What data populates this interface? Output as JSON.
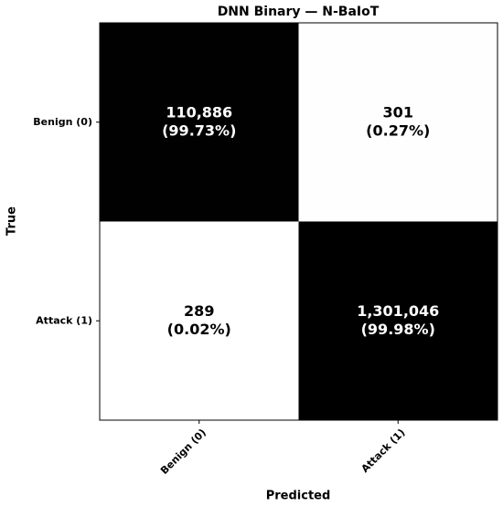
{
  "chart_data": {
    "type": "heatmap",
    "title": "DNN Binary — N-BaIoT",
    "xlabel": "Predicted",
    "ylabel": "True",
    "x_categories": [
      "Benign (0)",
      "Attack (1)"
    ],
    "y_categories": [
      "Benign (0)",
      "Attack (1)"
    ],
    "values": [
      [
        110886,
        301
      ],
      [
        289,
        1301046
      ]
    ],
    "value_labels": [
      [
        "110,886",
        "301"
      ],
      [
        "289",
        "1,301,046"
      ]
    ],
    "percent_values": [
      [
        99.73,
        0.27
      ],
      [
        0.02,
        99.98
      ]
    ],
    "percent_labels": [
      [
        "(99.73%)",
        "(0.27%)"
      ],
      [
        "(0.02%)",
        "(99.98%)"
      ]
    ],
    "colors": {
      "low": "#ffffff",
      "high": "#000000"
    }
  }
}
